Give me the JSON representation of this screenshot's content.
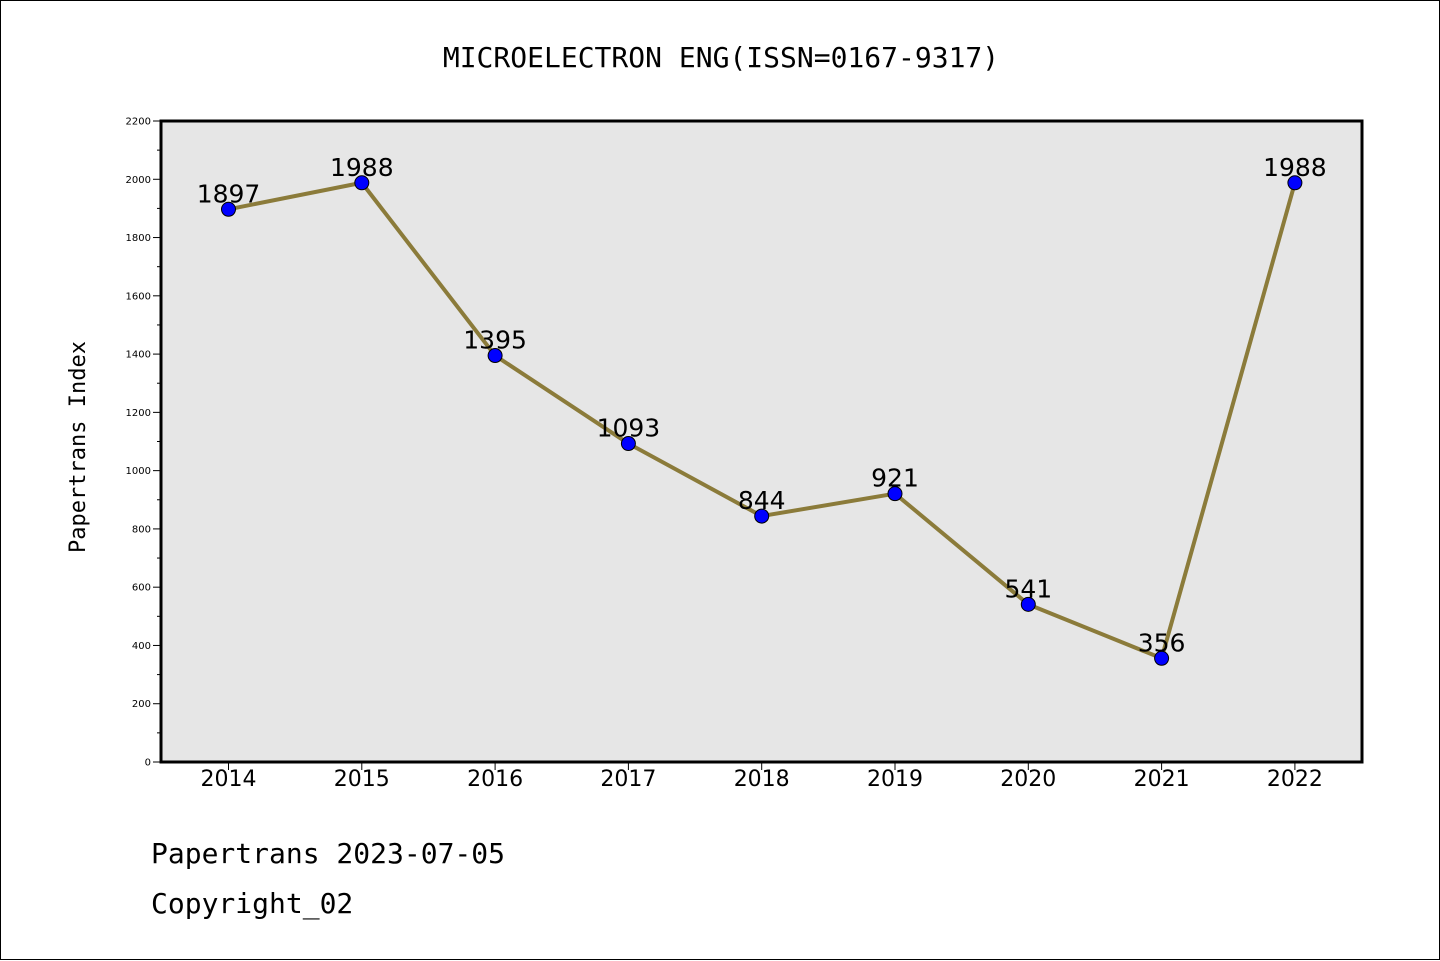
{
  "chart_data": {
    "type": "line",
    "title": "MICROELECTRON ENG(ISSN=0167-9317)",
    "xlabel": "",
    "ylabel": "Papertrans Index",
    "categories": [
      "2014",
      "2015",
      "2016",
      "2017",
      "2018",
      "2019",
      "2020",
      "2021",
      "2022"
    ],
    "series": [
      {
        "values": [
          1897,
          1988,
          1395,
          1093,
          844,
          921,
          541,
          356,
          1988
        ]
      }
    ],
    "data_labels": [
      "1897",
      "1988",
      "1395",
      "1093",
      "844",
      "921",
      "541",
      "356",
      "1988"
    ],
    "ylim": [
      0,
      2200
    ],
    "yticks": [
      0,
      200,
      400,
      600,
      800,
      1000,
      1200,
      1400,
      1600,
      1800,
      2000,
      2200
    ],
    "grid": false,
    "colors": {
      "line": "#8B7B3A",
      "marker": "#0000FF",
      "plot_background": "#E6E6E6"
    }
  },
  "footer": {
    "line1": "Papertrans 2023-07-05",
    "line2": "Copyright_02"
  }
}
